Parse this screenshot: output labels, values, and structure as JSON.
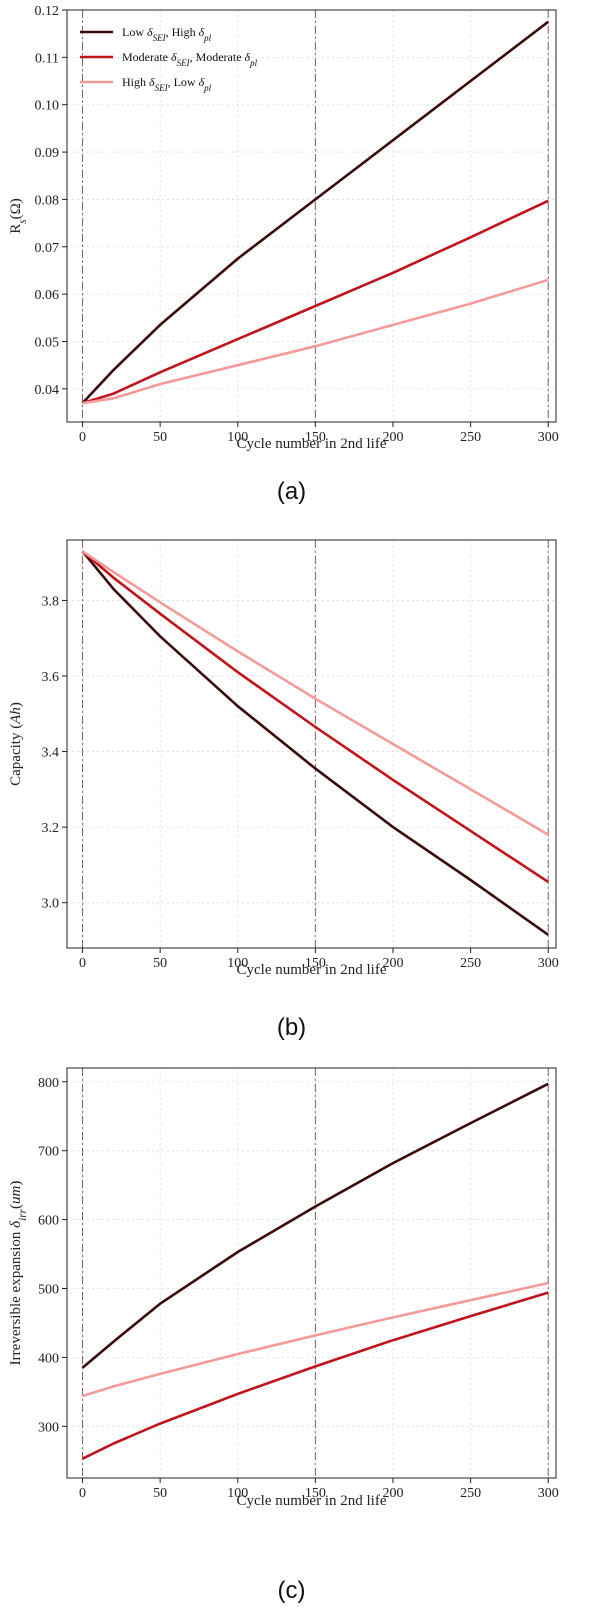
{
  "chart_data": [
    {
      "type": "line",
      "panel_label": "(a)",
      "xlabel": "Cycle number in 2nd life",
      "ylabel": "Rs(Ω)",
      "ylabel_parts": [
        {
          "t": "R"
        },
        {
          "t": "s",
          "sub": true,
          "italic": true
        },
        {
          "t": "(Ω)"
        }
      ],
      "xlim": [
        -10,
        305
      ],
      "ylim": [
        0.033,
        0.12
      ],
      "xticks": [
        0,
        50,
        100,
        150,
        200,
        250,
        300
      ],
      "yticks": [
        0.04,
        0.05,
        0.06,
        0.07,
        0.08,
        0.09,
        0.1,
        0.11,
        0.12
      ],
      "ytick_labels": [
        "0.04",
        "0.05",
        "0.06",
        "0.07",
        "0.08",
        "0.09",
        "0.10",
        "0.11",
        "0.12"
      ],
      "vlines": [
        0,
        150,
        300
      ],
      "grid": true,
      "legend_position": "top-left",
      "x": [
        0,
        20,
        50,
        100,
        150,
        200,
        250,
        300
      ],
      "series": [
        {
          "name": "Low δSEI, High δpl",
          "color": "#3a0a0a",
          "values": [
            0.037,
            0.044,
            0.0535,
            0.0675,
            0.08,
            0.0925,
            0.105,
            0.1175
          ]
        },
        {
          "name": "Moderate δSEI, Moderate δpl",
          "color": "#c0141b",
          "values": [
            0.037,
            0.039,
            0.0435,
            0.0505,
            0.0575,
            0.0645,
            0.072,
            0.0797
          ]
        },
        {
          "name": "High δSEI, Low δpl",
          "color": "#f59a9a",
          "values": [
            0.037,
            0.038,
            0.041,
            0.045,
            0.049,
            0.0535,
            0.058,
            0.063
          ]
        }
      ]
    },
    {
      "type": "line",
      "panel_label": "(b)",
      "xlabel": "Cycle number in 2nd life",
      "ylabel": "Capacity (Ah)",
      "ylabel_parts": [
        {
          "t": "Capacity ("
        },
        {
          "t": "Ah",
          "italic": true
        },
        {
          "t": ")"
        }
      ],
      "xlim": [
        -10,
        305
      ],
      "ylim": [
        2.88,
        3.96
      ],
      "xticks": [
        0,
        50,
        100,
        150,
        200,
        250,
        300
      ],
      "yticks": [
        3.0,
        3.2,
        3.4,
        3.6,
        3.8
      ],
      "ytick_labels": [
        "3.0",
        "3.2",
        "3.4",
        "3.6",
        "3.8"
      ],
      "vlines": [
        0,
        150,
        300
      ],
      "grid": true,
      "x": [
        0,
        20,
        50,
        100,
        150,
        200,
        250,
        300
      ],
      "series": [
        {
          "name": "Low δSEI, High δpl",
          "color": "#3a0a0a",
          "values": [
            3.93,
            3.83,
            3.705,
            3.52,
            3.355,
            3.2,
            3.06,
            2.915
          ]
        },
        {
          "name": "Moderate δSEI, Moderate δpl",
          "color": "#c0141b",
          "values": [
            3.93,
            3.86,
            3.765,
            3.61,
            3.465,
            3.325,
            3.19,
            3.055
          ]
        },
        {
          "name": "High δSEI, Low δpl",
          "color": "#f59a9a",
          "values": [
            3.93,
            3.875,
            3.795,
            3.665,
            3.54,
            3.42,
            3.3,
            3.18
          ]
        }
      ]
    },
    {
      "type": "line",
      "panel_label": "(c)",
      "xlabel": "Cycle number in 2nd life",
      "ylabel": "Irreversible expansion δirr(um)",
      "ylabel_parts": [
        {
          "t": "Irreversible expansion "
        },
        {
          "t": "δ",
          "italic": true
        },
        {
          "t": "irr",
          "sub": true,
          "italic": true
        },
        {
          "t": "("
        },
        {
          "t": "um",
          "italic": true
        },
        {
          "t": ")"
        }
      ],
      "xlim": [
        -10,
        305
      ],
      "ylim": [
        225,
        820
      ],
      "xticks": [
        0,
        50,
        100,
        150,
        200,
        250,
        300
      ],
      "yticks": [
        300,
        400,
        500,
        600,
        700,
        800
      ],
      "ytick_labels": [
        "300",
        "400",
        "500",
        "600",
        "700",
        "800"
      ],
      "vlines": [
        0,
        150,
        300
      ],
      "grid": true,
      "x": [
        0,
        20,
        50,
        100,
        150,
        200,
        250,
        300
      ],
      "series": [
        {
          "name": "Low δSEI, High δpl",
          "color": "#3a0a0a",
          "values": [
            385,
            423,
            478,
            553,
            619,
            682,
            740,
            797
          ]
        },
        {
          "name": "Moderate δSEI, Moderate δpl",
          "color": "#c0141b",
          "values": [
            253,
            275,
            304,
            347,
            387,
            425,
            460,
            494
          ]
        },
        {
          "name": "High δSEI, Low δpl",
          "color": "#f59a9a",
          "values": [
            344,
            358,
            376,
            405,
            432,
            458,
            483,
            508
          ]
        }
      ]
    }
  ],
  "legend": [
    {
      "parts": [
        {
          "t": "Low "
        },
        {
          "t": "δ",
          "italic": true
        },
        {
          "t": "SEI",
          "sub": true,
          "italic": true
        },
        {
          "t": ", High "
        },
        {
          "t": "δ",
          "italic": true
        },
        {
          "t": "pl",
          "sub": true,
          "italic": true
        }
      ],
      "color": "#3a0a0a"
    },
    {
      "parts": [
        {
          "t": "Moderate "
        },
        {
          "t": "δ",
          "italic": true
        },
        {
          "t": "SEI",
          "sub": true,
          "italic": true
        },
        {
          "t": ", Moderate "
        },
        {
          "t": "δ",
          "italic": true
        },
        {
          "t": "pl",
          "sub": true,
          "italic": true
        }
      ],
      "color": "#c0141b"
    },
    {
      "parts": [
        {
          "t": "High "
        },
        {
          "t": "δ",
          "italic": true
        },
        {
          "t": "SEI",
          "sub": true,
          "italic": true
        },
        {
          "t": ", Low "
        },
        {
          "t": "δ",
          "italic": true
        },
        {
          "t": "pl",
          "sub": true,
          "italic": true
        }
      ],
      "color": "#f59a9a"
    }
  ],
  "colors": {
    "grid": "#d9d9d9",
    "vline": "#8a5a66",
    "axis": "#222222"
  }
}
